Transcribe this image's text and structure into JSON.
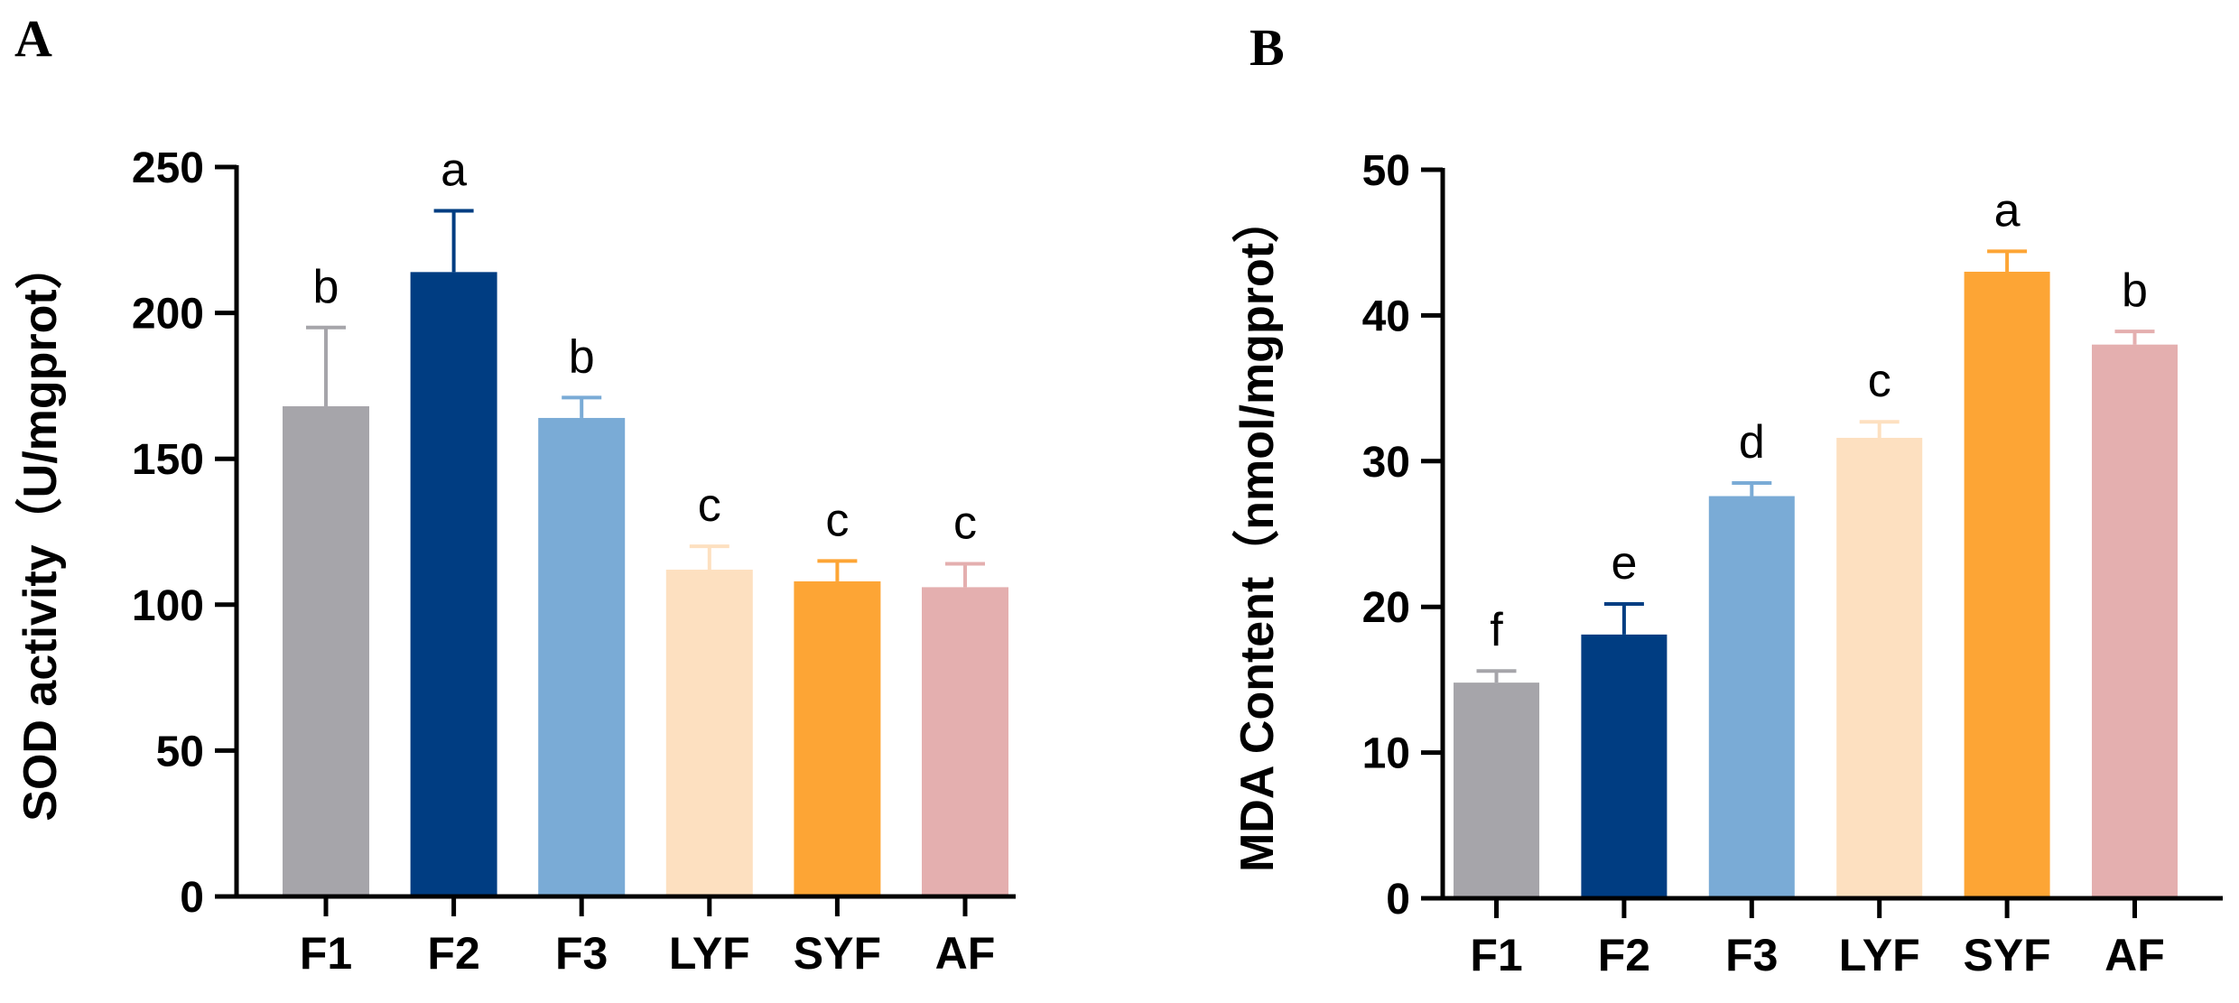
{
  "chart_data": [
    {
      "panel": "A",
      "type": "bar",
      "title": "",
      "xlabel": "",
      "ylabel": "SOD activity（U/mgprot）",
      "ylim": [
        0,
        250
      ],
      "yticks": [
        0,
        50,
        100,
        150,
        200,
        250
      ],
      "categories": [
        "F1",
        "F2",
        "F3",
        "LYF",
        "SYF",
        "AF"
      ],
      "values": [
        168,
        214,
        164,
        112,
        108,
        106
      ],
      "errors": [
        27,
        21,
        7,
        8,
        7,
        8
      ],
      "significance": [
        "b",
        "a",
        "b",
        "c",
        "c",
        "c"
      ],
      "colors": [
        "#a6a5aa",
        "#003d82",
        "#7aabd6",
        "#fde0c0",
        "#fda535",
        "#e4afaf"
      ],
      "grid": false,
      "legend": "none"
    },
    {
      "panel": "B",
      "type": "bar",
      "title": "",
      "xlabel": "",
      "ylabel": "MDA Content（nmol/mgprot）",
      "ylim": [
        0,
        50
      ],
      "yticks": [
        0,
        10,
        20,
        30,
        40,
        50
      ],
      "categories": [
        "F1",
        "F2",
        "F3",
        "LYF",
        "SYF",
        "AF"
      ],
      "values": [
        14.8,
        18.1,
        27.6,
        31.6,
        43.0,
        38.0
      ],
      "errors": [
        0.8,
        2.1,
        0.9,
        1.1,
        1.4,
        0.9
      ],
      "significance": [
        "f",
        "e",
        "d",
        "c",
        "a",
        "b"
      ],
      "colors": [
        "#a6a5aa",
        "#003d82",
        "#7aabd6",
        "#fde0c0",
        "#fda535",
        "#e4afaf"
      ],
      "grid": false,
      "legend": "none"
    }
  ]
}
